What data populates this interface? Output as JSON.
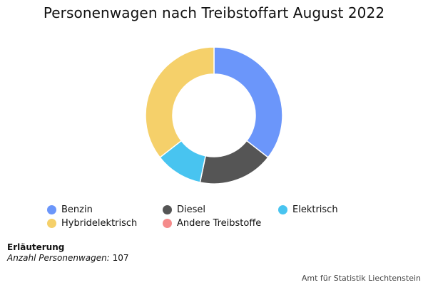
{
  "chart_data": {
    "type": "pie",
    "title": "Personenwagen nach Treibstoffart August 2022",
    "donut": true,
    "total": 107,
    "categories": [
      "Benzin",
      "Diesel",
      "Elektrisch",
      "Hybridelektrisch",
      "Andere Treibstoffe"
    ],
    "values": [
      38,
      19,
      12,
      38,
      0
    ],
    "colors": [
      "#6b96fa",
      "#555555",
      "#48c4f0",
      "#f5d06a",
      "#f58b8b"
    ],
    "legend_position": "bottom"
  },
  "note": {
    "heading": "Erläuterung",
    "key": "Anzahl Personenwagen:",
    "value": "107"
  },
  "source": "Amt für Statistik Liechtenstein"
}
